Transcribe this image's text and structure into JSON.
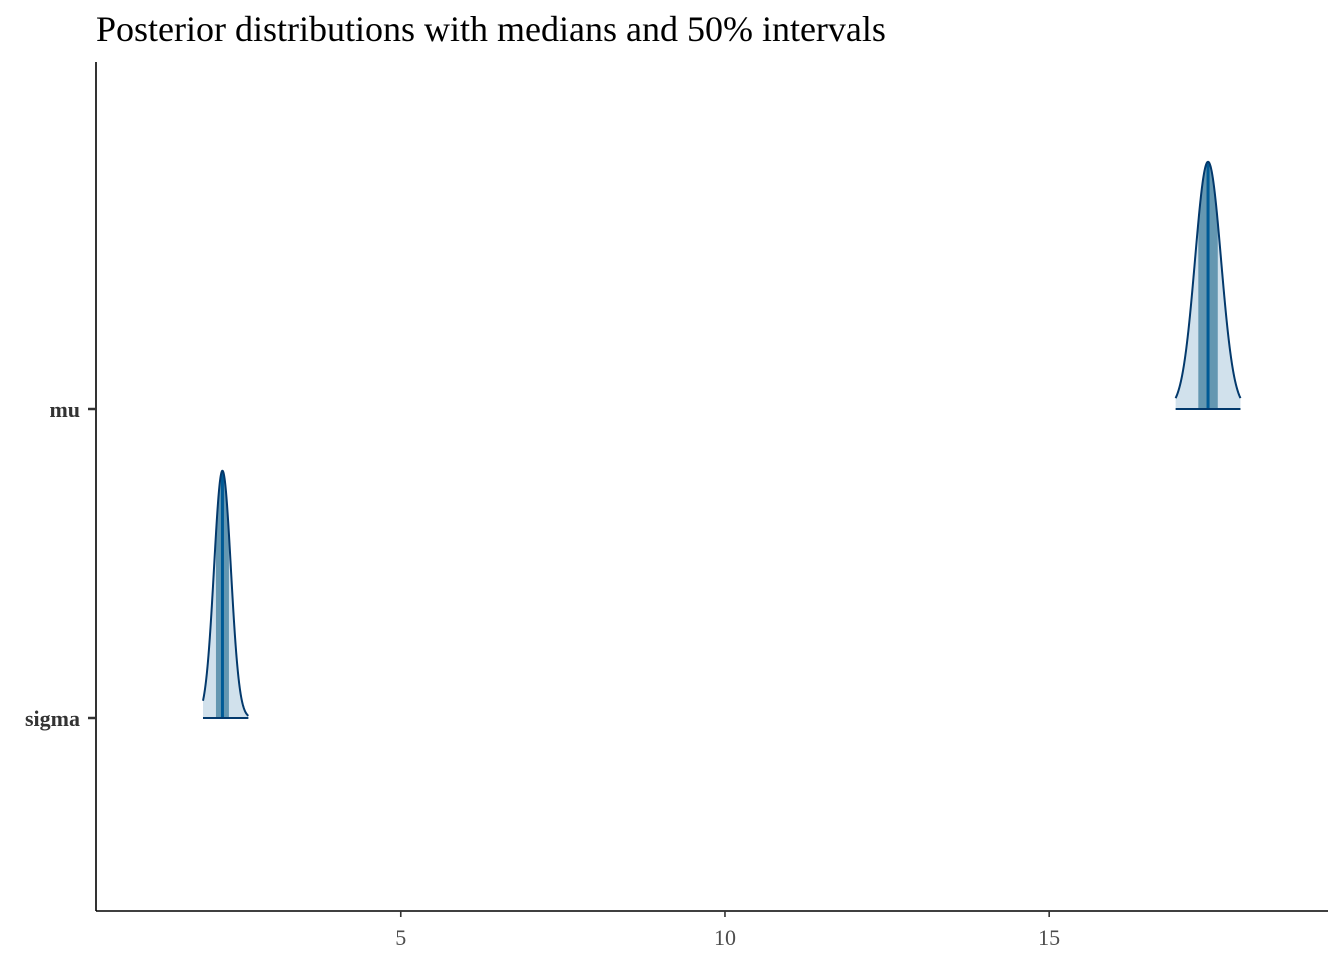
{
  "chart_data": {
    "type": "density",
    "title": "Posterior distributions with medians and 50% intervals",
    "xlabel": "",
    "ylabel": "",
    "xlim": [
      0.3,
      19.3
    ],
    "x_ticks": [
      5,
      10,
      15
    ],
    "x_tick_labels": [
      "5",
      "10",
      "15"
    ],
    "parameters": [
      "mu",
      "sigma"
    ],
    "series": [
      {
        "name": "mu",
        "median": 17.45,
        "interval_50": [
          17.3,
          17.6
        ],
        "range": [
          16.95,
          17.95
        ],
        "peak_height": 0.8,
        "sd": 0.2
      },
      {
        "name": "sigma",
        "median": 2.25,
        "interval_50": [
          2.15,
          2.35
        ],
        "range": [
          1.95,
          2.65
        ],
        "peak_height": 0.8,
        "sd": 0.13
      }
    ],
    "grid": false,
    "colors": {
      "outline": "#03396c",
      "interval_fill": "#6497b1",
      "density_fill": "#d1e1ec",
      "median_line": "#005b96",
      "axis": "#000000"
    }
  }
}
